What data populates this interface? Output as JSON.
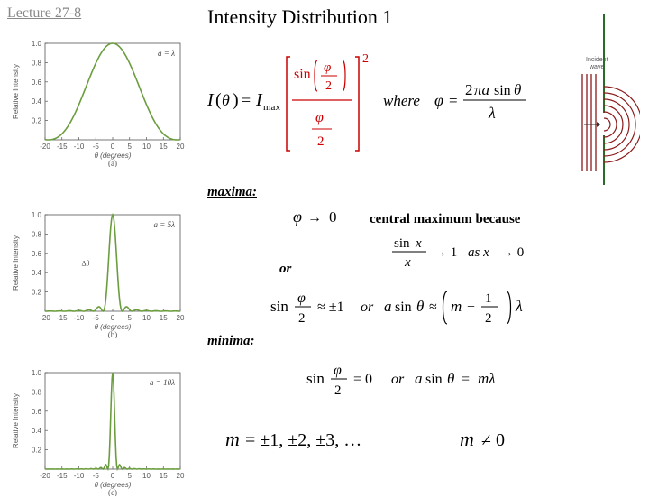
{
  "lecture": "Lecture 27-8",
  "title": "Intensity Distribution 1",
  "maxima": "maxima:",
  "central": "central maximum because",
  "or": "or",
  "minima": "minima:",
  "plots": {
    "a": {
      "ylabel": "Relative Intensity",
      "xlabel": "θ (degrees)",
      "xticks": [
        -20,
        -15,
        -10,
        -5,
        0,
        5,
        10,
        15,
        20
      ],
      "yticks": [
        0.2,
        0.4,
        0.6,
        0.8,
        1.0
      ],
      "annotation": "a = λ",
      "caption": "(a)",
      "type": "sinc",
      "width_factor": 0.3,
      "curve_color": "#6b9d3f",
      "axis_color": "#555555",
      "bg": "#ffffff"
    },
    "b": {
      "ylabel": "Relative Intensity",
      "xlabel": "θ (degrees)",
      "xticks": [
        -20,
        -15,
        -10,
        -5,
        0,
        5,
        10,
        15,
        20
      ],
      "yticks": [
        0.2,
        0.4,
        0.6,
        0.8,
        1.0
      ],
      "annotation": "a = 5λ",
      "caption": "(b)",
      "type": "sinc",
      "width_factor": 2.0,
      "curve_color": "#6b9d3f",
      "axis_color": "#555555",
      "bg": "#ffffff",
      "show_dtheta": true
    },
    "c": {
      "ylabel": "Relative Intensity",
      "xlabel": "θ (degrees)",
      "xticks": [
        -20,
        -15,
        -10,
        -5,
        0,
        5,
        10,
        15,
        20
      ],
      "yticks": [
        0.2,
        0.4,
        0.6,
        0.8,
        1.0
      ],
      "annotation": "a = 10λ",
      "caption": "(c)",
      "type": "sinc",
      "width_factor": 4.0,
      "curve_color": "#6b9d3f",
      "axis_color": "#555555",
      "bg": "#ffffff"
    }
  },
  "formulas": {
    "intensity": "I(θ) = I_max [sin(φ/2) / (φ/2)]²",
    "where": "where",
    "phi": "φ = 2πa sinθ / λ",
    "phi_to_0": "φ → 0",
    "sinx_limit": "sin x / x → 1 as x → 0",
    "sin_phi2": "sin(φ/2) ≈ ±1",
    "asin": "a sinθ ≈ (m + ½)λ",
    "sin_phi2_0": "sin(φ/2) = 0",
    "asin_m": "a sinθ = mλ",
    "m_values": "m = ±1, ±2, ±3, …",
    "m_neq": "m ≠ 0"
  },
  "formula_colors": {
    "bracket": "#cc0000",
    "black": "#000000",
    "blue_italic": "#000000"
  },
  "wave_diagram": {
    "label": "Incident wave",
    "slit_line_color": "#2a6b2a",
    "wave_line_color": "#8b1a1a",
    "n_incident_lines": 4,
    "n_arcs": 6
  }
}
